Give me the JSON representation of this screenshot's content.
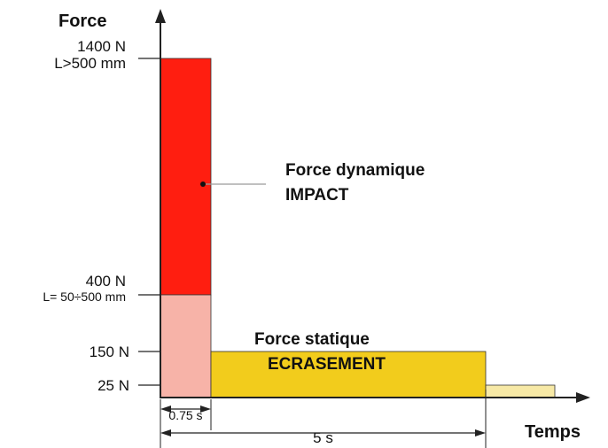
{
  "chart_data": {
    "type": "area",
    "y_axis_label": "Force",
    "x_axis_label": "Temps",
    "y_ticks": [
      {
        "value": 1400,
        "label": "1400 N",
        "sublabel": "L>500 mm"
      },
      {
        "value": 400,
        "label": "400 N",
        "sublabel": "L= 50÷500 mm"
      },
      {
        "value": 150,
        "label": "150 N",
        "sublabel": ""
      },
      {
        "value": 25,
        "label": "25 N",
        "sublabel": ""
      }
    ],
    "regions": [
      {
        "name": "dynamic-high",
        "t_start": 0,
        "t_end": 0.75,
        "f_low": 400,
        "f_high": 1400,
        "color": "#ff1e10"
      },
      {
        "name": "dynamic-low",
        "t_start": 0,
        "t_end": 0.75,
        "f_low": 0,
        "f_high": 400,
        "color": "#f7b3a8"
      },
      {
        "name": "static",
        "t_start": 0.75,
        "t_end": 5,
        "f_low": 0,
        "f_high": 150,
        "color": "#f2cc1c"
      },
      {
        "name": "residual",
        "t_start": 5,
        "t_end": 6.3,
        "f_low": 0,
        "f_high": 25,
        "color": "#f7e9a6"
      }
    ],
    "durations": [
      {
        "t_start": 0,
        "t_end": 0.75,
        "label": "0.75 s"
      },
      {
        "t_start": 0,
        "t_end": 5,
        "label": "5 s"
      }
    ],
    "annotations": [
      {
        "line1": "Force dynamique",
        "line2": "IMPACT"
      },
      {
        "line1": "Force statique",
        "line2": "ECRASEMENT"
      }
    ],
    "colors": {
      "axis": "#222222",
      "leader": "#9a9a9a"
    }
  }
}
